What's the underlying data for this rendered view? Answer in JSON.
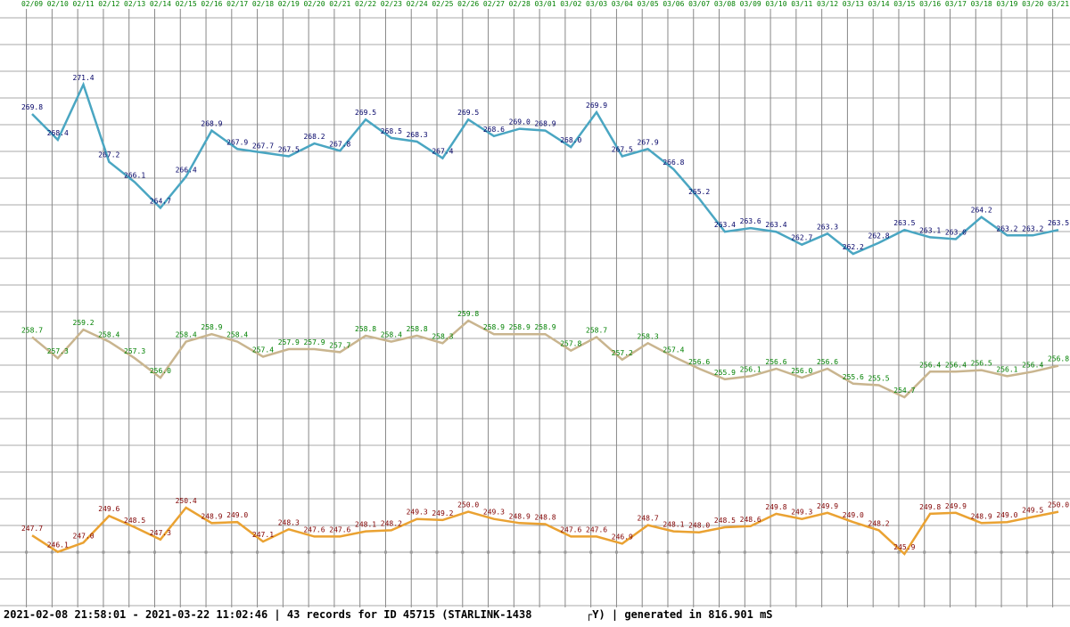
{
  "chart_data": {
    "type": "line",
    "categories": [
      "02/09",
      "02/10",
      "02/11",
      "02/12",
      "02/13",
      "02/14",
      "02/15",
      "02/16",
      "02/17",
      "02/18",
      "02/19",
      "02/20",
      "02/21",
      "02/22",
      "02/23",
      "02/24",
      "02/25",
      "02/26",
      "02/27",
      "02/28",
      "03/01",
      "03/02",
      "03/03",
      "03/04",
      "03/05",
      "03/06",
      "03/07",
      "03/08",
      "03/09",
      "03/10",
      "03/11",
      "03/12",
      "03/13",
      "03/14",
      "03/15",
      "03/16",
      "03/17",
      "03/18",
      "03/19",
      "03/20",
      "03/21"
    ],
    "series": [
      {
        "color": "#4aa6c2",
        "label_color": "#000066",
        "values": [
          269.8,
          268.4,
          271.4,
          267.2,
          266.1,
          264.7,
          266.4,
          268.9,
          267.9,
          267.7,
          267.5,
          268.2,
          267.8,
          269.5,
          268.5,
          268.3,
          267.4,
          269.5,
          268.6,
          269.0,
          268.9,
          268.0,
          269.9,
          267.5,
          267.9,
          266.8,
          265.2,
          263.4,
          263.6,
          263.4,
          262.7,
          263.3,
          262.2,
          262.8,
          263.5,
          263.1,
          263.0,
          264.2,
          263.2,
          263.2,
          263.5
        ],
        "value_labels": [
          "269.8",
          "268.4",
          "271.4",
          "267.2",
          "266.1",
          "264.7",
          "266.4",
          "268.9",
          "267.9",
          "267.7",
          "267.5",
          "268.2",
          "267.8",
          "269.5",
          "268.5",
          "268.3",
          "267.4",
          "269.5",
          "268.6",
          "269.0",
          "268.9",
          "268.0",
          "269.9",
          "267.5",
          "267.9",
          "266.8",
          "265.2",
          "263.4",
          "263.6",
          "263.4",
          "262.7",
          "263.3",
          "262.2",
          "262.8",
          "263.5",
          "263.1",
          "263.0",
          "264.2",
          "263.2",
          "263.2",
          "263.5"
        ]
      },
      {
        "color": "#c9b58f",
        "label_color": "#008000",
        "values": [
          258.7,
          257.3,
          259.2,
          258.4,
          257.3,
          256.0,
          258.4,
          258.9,
          258.4,
          257.4,
          257.9,
          257.9,
          257.7,
          258.8,
          258.4,
          258.8,
          258.3,
          259.8,
          258.9,
          258.9,
          258.9,
          257.8,
          258.7,
          257.2,
          258.3,
          257.4,
          256.6,
          255.9,
          256.1,
          256.6,
          256.0,
          256.6,
          255.6,
          255.5,
          254.7,
          256.4,
          256.4,
          256.5,
          256.1,
          256.4,
          256.8
        ],
        "value_labels": [
          "258.7",
          "257.3",
          "259.2",
          "258.4",
          "257.3",
          "256.0",
          "258.4",
          "258.9",
          "258.4",
          "257.4",
          "257.9",
          "257.9",
          "257.7",
          "258.8",
          "258.4",
          "258.8",
          "258.3",
          "259.8",
          "258.9",
          "258.9",
          "258.9",
          "257.8",
          "258.7",
          "257.2",
          "258.3",
          "257.4",
          "256.6",
          "255.9",
          "256.1",
          "256.6",
          "256.0",
          "256.6",
          "255.6",
          "255.5",
          "254.7",
          "256.4",
          "256.4",
          "256.5",
          "256.1",
          "256.4",
          "256.8"
        ]
      },
      {
        "color": "#eaa232",
        "label_color": "#800000",
        "values": [
          247.7,
          246.1,
          247.0,
          249.6,
          248.5,
          247.3,
          250.4,
          248.9,
          249.0,
          247.1,
          248.3,
          247.6,
          247.6,
          248.1,
          248.2,
          249.3,
          249.2,
          250.0,
          249.3,
          248.9,
          248.8,
          247.6,
          247.6,
          246.9,
          248.7,
          248.1,
          248.0,
          248.5,
          248.6,
          249.8,
          249.3,
          249.9,
          249.0,
          248.2,
          245.9,
          249.8,
          249.9,
          248.9,
          249.0,
          249.5,
          250.0
        ],
        "value_labels": [
          "247.7",
          "246.1",
          "247.0",
          "249.6",
          "248.5",
          "247.3",
          "250.4",
          "248.9",
          "249.0",
          "247.1",
          "248.3",
          "247.6",
          "247.6",
          "248.1",
          "248.2",
          "249.3",
          "249.2",
          "250.0",
          "249.3",
          "248.9",
          "248.8",
          "247.6",
          "247.6",
          "246.9",
          "248.7",
          "248.1",
          "248.0",
          "248.5",
          "248.6",
          "249.8",
          "249.3",
          "249.9",
          "249.0",
          "248.2",
          "245.9",
          "249.8",
          "249.9",
          "248.9",
          "249.0",
          "249.5",
          "250.0"
        ]
      }
    ]
  },
  "footer": {
    "left": "2021-02-08 21:58:01 - 2021-03-22 11:02:46 | 43 records for ID 45715 (STARLINK-1438",
    "right": "┌Y) | generated in 816.901 mS"
  }
}
